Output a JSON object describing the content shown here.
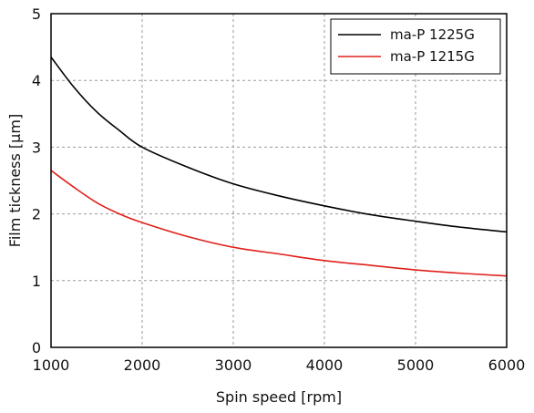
{
  "chart_data": {
    "type": "line",
    "title": "",
    "xlabel": "Spin speed [rpm]",
    "ylabel": "Film tickness [µm]",
    "xlim": [
      1000,
      6000
    ],
    "ylim": [
      0,
      5
    ],
    "xticks": [
      1000,
      2000,
      3000,
      4000,
      5000,
      6000
    ],
    "yticks": [
      0,
      1,
      2,
      3,
      4,
      5
    ],
    "grid": true,
    "legend_position": "top-right",
    "series": [
      {
        "name": "ma-P 1225G",
        "color": "#000000",
        "x": [
          1000,
          1250,
          1500,
          1750,
          2000,
          2500,
          3000,
          3500,
          4000,
          4500,
          5000,
          5500,
          6000
        ],
        "y": [
          4.35,
          3.9,
          3.53,
          3.25,
          3.0,
          2.7,
          2.45,
          2.27,
          2.12,
          1.99,
          1.89,
          1.8,
          1.73
        ]
      },
      {
        "name": "ma-P 1215G",
        "color": "#e0201b",
        "x": [
          1000,
          1250,
          1500,
          1750,
          2000,
          2500,
          3000,
          3500,
          4000,
          4500,
          5000,
          5500,
          6000
        ],
        "y": [
          2.65,
          2.4,
          2.17,
          2.0,
          1.87,
          1.66,
          1.5,
          1.4,
          1.3,
          1.23,
          1.16,
          1.11,
          1.07
        ]
      }
    ]
  }
}
